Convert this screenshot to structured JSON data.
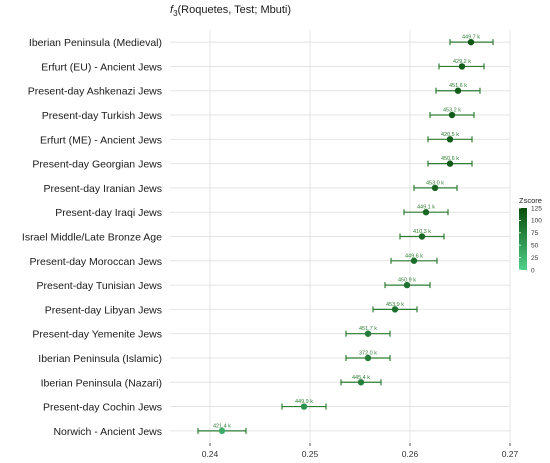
{
  "chart_data": {
    "type": "scatter",
    "title_func": "f",
    "title_sub": "3",
    "title_args": "(Roquetes, Test; Mbuti)",
    "categories": [
      "Iberian Peninsula (Medieval)",
      "Erfurt (EU) - Ancient Jews",
      "Present-day Ashkenazi Jews",
      "Present-day Turkish Jews",
      "Erfurt (ME) - Ancient Jews",
      "Present-day Georgian Jews",
      "Present-day Iranian Jews",
      "Present-day Iraqi Jews",
      "Israel Middle/Late Bronze Age",
      "Present-day Moroccan Jews",
      "Present-day Tunisian Jews",
      "Present-day Libyan Jews",
      "Present-day Yemenite Jews",
      "Iberian Peninsula (Islamic)",
      "Iberian Peninsula (Nazari)",
      "Present-day Cochin Jews",
      "Norwich - Ancient Jews"
    ],
    "values": [
      0.2661,
      0.2652,
      0.2648,
      0.2642,
      0.264,
      0.264,
      0.2625,
      0.2616,
      0.2612,
      0.2604,
      0.2597,
      0.2585,
      0.2558,
      0.2558,
      0.2551,
      0.2494,
      0.2412
    ],
    "err_low": [
      0.264,
      0.2629,
      0.2626,
      0.262,
      0.2618,
      0.2618,
      0.2604,
      0.2594,
      0.259,
      0.2581,
      0.2575,
      0.2563,
      0.2536,
      0.2536,
      0.2531,
      0.2472,
      0.2388
    ],
    "err_high": [
      0.2683,
      0.2674,
      0.267,
      0.2664,
      0.2662,
      0.2662,
      0.2647,
      0.2638,
      0.2634,
      0.2627,
      0.262,
      0.2607,
      0.258,
      0.258,
      0.2571,
      0.2516,
      0.2436
    ],
    "labels": [
      "449.7 k",
      "429.2 k",
      "451.6 k",
      "453.2 k",
      "420.5 k",
      "450.6 k",
      "453.0 k",
      "449.1 k",
      "410.3 k",
      "449.6 k",
      "450.9 k",
      "453.9 k",
      "451.7 k",
      "372.0 k",
      "445.4 k",
      "449.9 k",
      "421.4 k"
    ],
    "zscores": [
      115,
      110,
      112,
      112,
      110,
      112,
      105,
      100,
      100,
      95,
      90,
      92,
      80,
      80,
      78,
      60,
      35
    ],
    "xlim": [
      0.236,
      0.27
    ],
    "xticks": [
      0.24,
      0.25,
      0.26,
      0.27
    ],
    "xtick_labels": [
      "0.24",
      "0.25",
      "0.26",
      "0.27"
    ],
    "legend": {
      "title": "Zscore",
      "ticks": [
        125,
        100,
        75,
        50,
        25,
        0
      ],
      "tick_labels": [
        "125",
        "100",
        "75",
        "50",
        "25",
        "0"
      ],
      "placement": "right",
      "color_low": "#4fd18b",
      "color_high": "#0b4d0b"
    },
    "grid": true,
    "colors": {
      "error_bar": "#2e7d32",
      "data_label": "#2e7d32",
      "grid": "#e4e4e4"
    }
  }
}
